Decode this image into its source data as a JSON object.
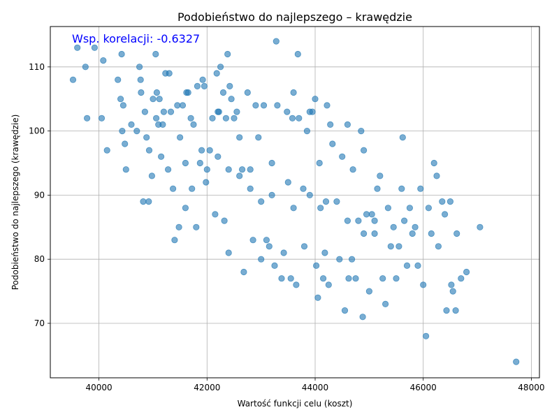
{
  "chart_data": {
    "type": "scatter",
    "title": "Podobieństwo do najlepszego – krawędzie",
    "xlabel": "Wartość funkcji celu (koszt)",
    "ylabel": "Podobieństwo do najlepszego (krawędzie)",
    "annotation": "Wsp. korelacji: -0.6327",
    "annotation_color": "#0000ff",
    "marker_color": "#1f77b4",
    "grid": true,
    "xlim": [
      39100,
      48150
    ],
    "ylim": [
      61.5,
      116.3
    ],
    "xticks": [
      40000,
      42000,
      44000,
      46000,
      48000
    ],
    "xtick_labels": [
      "40000",
      "42000",
      "44000",
      "46000",
      "48000"
    ],
    "yticks": [
      70,
      80,
      90,
      100,
      110
    ],
    "ytick_labels": [
      "70",
      "80",
      "90",
      "100",
      "110"
    ],
    "points": [
      [
        39520,
        108
      ],
      [
        39600,
        113
      ],
      [
        39750,
        110
      ],
      [
        39780,
        102
      ],
      [
        39920,
        113
      ],
      [
        40050,
        102
      ],
      [
        40080,
        111
      ],
      [
        40150,
        97
      ],
      [
        40350,
        108
      ],
      [
        40400,
        105
      ],
      [
        40420,
        112
      ],
      [
        40450,
        104
      ],
      [
        40430,
        100
      ],
      [
        40480,
        98
      ],
      [
        40500,
        94
      ],
      [
        40600,
        101
      ],
      [
        40700,
        100
      ],
      [
        40750,
        110
      ],
      [
        40770,
        108
      ],
      [
        40780,
        106
      ],
      [
        40820,
        89
      ],
      [
        40850,
        103
      ],
      [
        40880,
        99
      ],
      [
        40920,
        89
      ],
      [
        40930,
        97
      ],
      [
        40980,
        93
      ],
      [
        41000,
        105
      ],
      [
        41050,
        112
      ],
      [
        41060,
        102
      ],
      [
        41070,
        106
      ],
      [
        41100,
        101
      ],
      [
        41120,
        105
      ],
      [
        41150,
        96
      ],
      [
        41180,
        101
      ],
      [
        41200,
        103
      ],
      [
        41230,
        109
      ],
      [
        41280,
        94
      ],
      [
        41300,
        109
      ],
      [
        41330,
        103
      ],
      [
        41370,
        91
      ],
      [
        41400,
        83
      ],
      [
        41450,
        104
      ],
      [
        41480,
        85
      ],
      [
        41500,
        99
      ],
      [
        41550,
        104
      ],
      [
        41600,
        88
      ],
      [
        41620,
        106
      ],
      [
        41650,
        106
      ],
      [
        41700,
        102
      ],
      [
        41720,
        91
      ],
      [
        41750,
        101
      ],
      [
        41800,
        85
      ],
      [
        41820,
        107
      ],
      [
        41870,
        95
      ],
      [
        41920,
        108
      ],
      [
        41950,
        107
      ],
      [
        41980,
        92
      ],
      [
        42000,
        94
      ],
      [
        42050,
        97
      ],
      [
        42100,
        102
      ],
      [
        42150,
        87
      ],
      [
        42180,
        109
      ],
      [
        42200,
        103
      ],
      [
        42220,
        103
      ],
      [
        42250,
        110
      ],
      [
        42300,
        106
      ],
      [
        42320,
        86
      ],
      [
        42350,
        102
      ],
      [
        42380,
        112
      ],
      [
        42400,
        81
      ],
      [
        42420,
        107
      ],
      [
        42450,
        105
      ],
      [
        42500,
        102
      ],
      [
        42550,
        103
      ],
      [
        42600,
        99
      ],
      [
        42650,
        94
      ],
      [
        42680,
        78
      ],
      [
        42750,
        106
      ],
      [
        42800,
        94
      ],
      [
        42850,
        83
      ],
      [
        42900,
        104
      ],
      [
        42950,
        99
      ],
      [
        43000,
        80
      ],
      [
        43050,
        104
      ],
      [
        43100,
        83
      ],
      [
        43150,
        82
      ],
      [
        43200,
        90
      ],
      [
        43250,
        79
      ],
      [
        43280,
        114
      ],
      [
        43300,
        104
      ],
      [
        43380,
        77
      ],
      [
        43420,
        81
      ],
      [
        43480,
        103
      ],
      [
        43550,
        77
      ],
      [
        43580,
        102
      ],
      [
        43600,
        106
      ],
      [
        43650,
        76
      ],
      [
        43680,
        112
      ],
      [
        43700,
        102
      ],
      [
        43780,
        91
      ],
      [
        43800,
        82
      ],
      [
        43850,
        100
      ],
      [
        43900,
        103
      ],
      [
        43950,
        103
      ],
      [
        44000,
        105
      ],
      [
        44020,
        79
      ],
      [
        44050,
        74
      ],
      [
        44080,
        95
      ],
      [
        44100,
        88
      ],
      [
        44150,
        77
      ],
      [
        44180,
        81
      ],
      [
        44220,
        104
      ],
      [
        44250,
        76
      ],
      [
        44280,
        101
      ],
      [
        44320,
        98
      ],
      [
        44400,
        89
      ],
      [
        44450,
        80
      ],
      [
        44500,
        96
      ],
      [
        44550,
        72
      ],
      [
        44600,
        101
      ],
      [
        44620,
        77
      ],
      [
        44680,
        80
      ],
      [
        44700,
        94
      ],
      [
        44750,
        77
      ],
      [
        44800,
        86
      ],
      [
        44850,
        100
      ],
      [
        44880,
        71
      ],
      [
        44900,
        97
      ],
      [
        44950,
        87
      ],
      [
        45000,
        75
      ],
      [
        45050,
        87
      ],
      [
        45100,
        84
      ],
      [
        45150,
        91
      ],
      [
        45200,
        93
      ],
      [
        45250,
        77
      ],
      [
        45300,
        73
      ],
      [
        45350,
        88
      ],
      [
        45400,
        82
      ],
      [
        45450,
        85
      ],
      [
        45500,
        77
      ],
      [
        45550,
        82
      ],
      [
        45600,
        91
      ],
      [
        45620,
        99
      ],
      [
        45650,
        86
      ],
      [
        45700,
        79
      ],
      [
        45750,
        88
      ],
      [
        45800,
        84
      ],
      [
        45850,
        85
      ],
      [
        45900,
        79
      ],
      [
        45950,
        91
      ],
      [
        46000,
        76
      ],
      [
        46050,
        68
      ],
      [
        46100,
        88
      ],
      [
        46150,
        84
      ],
      [
        46200,
        95
      ],
      [
        46250,
        93
      ],
      [
        46280,
        82
      ],
      [
        46350,
        89
      ],
      [
        46400,
        87
      ],
      [
        46430,
        72
      ],
      [
        46500,
        89
      ],
      [
        46520,
        76
      ],
      [
        46550,
        75
      ],
      [
        46600,
        72
      ],
      [
        46620,
        84
      ],
      [
        46700,
        77
      ],
      [
        46800,
        78
      ],
      [
        47050,
        85
      ],
      [
        47720,
        64
      ],
      [
        43200,
        95
      ],
      [
        42800,
        91
      ],
      [
        43500,
        92
      ],
      [
        42200,
        96
      ],
      [
        44200,
        89
      ],
      [
        41900,
        97
      ],
      [
        43600,
        88
      ],
      [
        44600,
        86
      ],
      [
        42600,
        93
      ],
      [
        43900,
        90
      ],
      [
        42400,
        94
      ],
      [
        45100,
        86
      ],
      [
        41600,
        95
      ],
      [
        44900,
        84
      ],
      [
        43000,
        89
      ]
    ]
  }
}
